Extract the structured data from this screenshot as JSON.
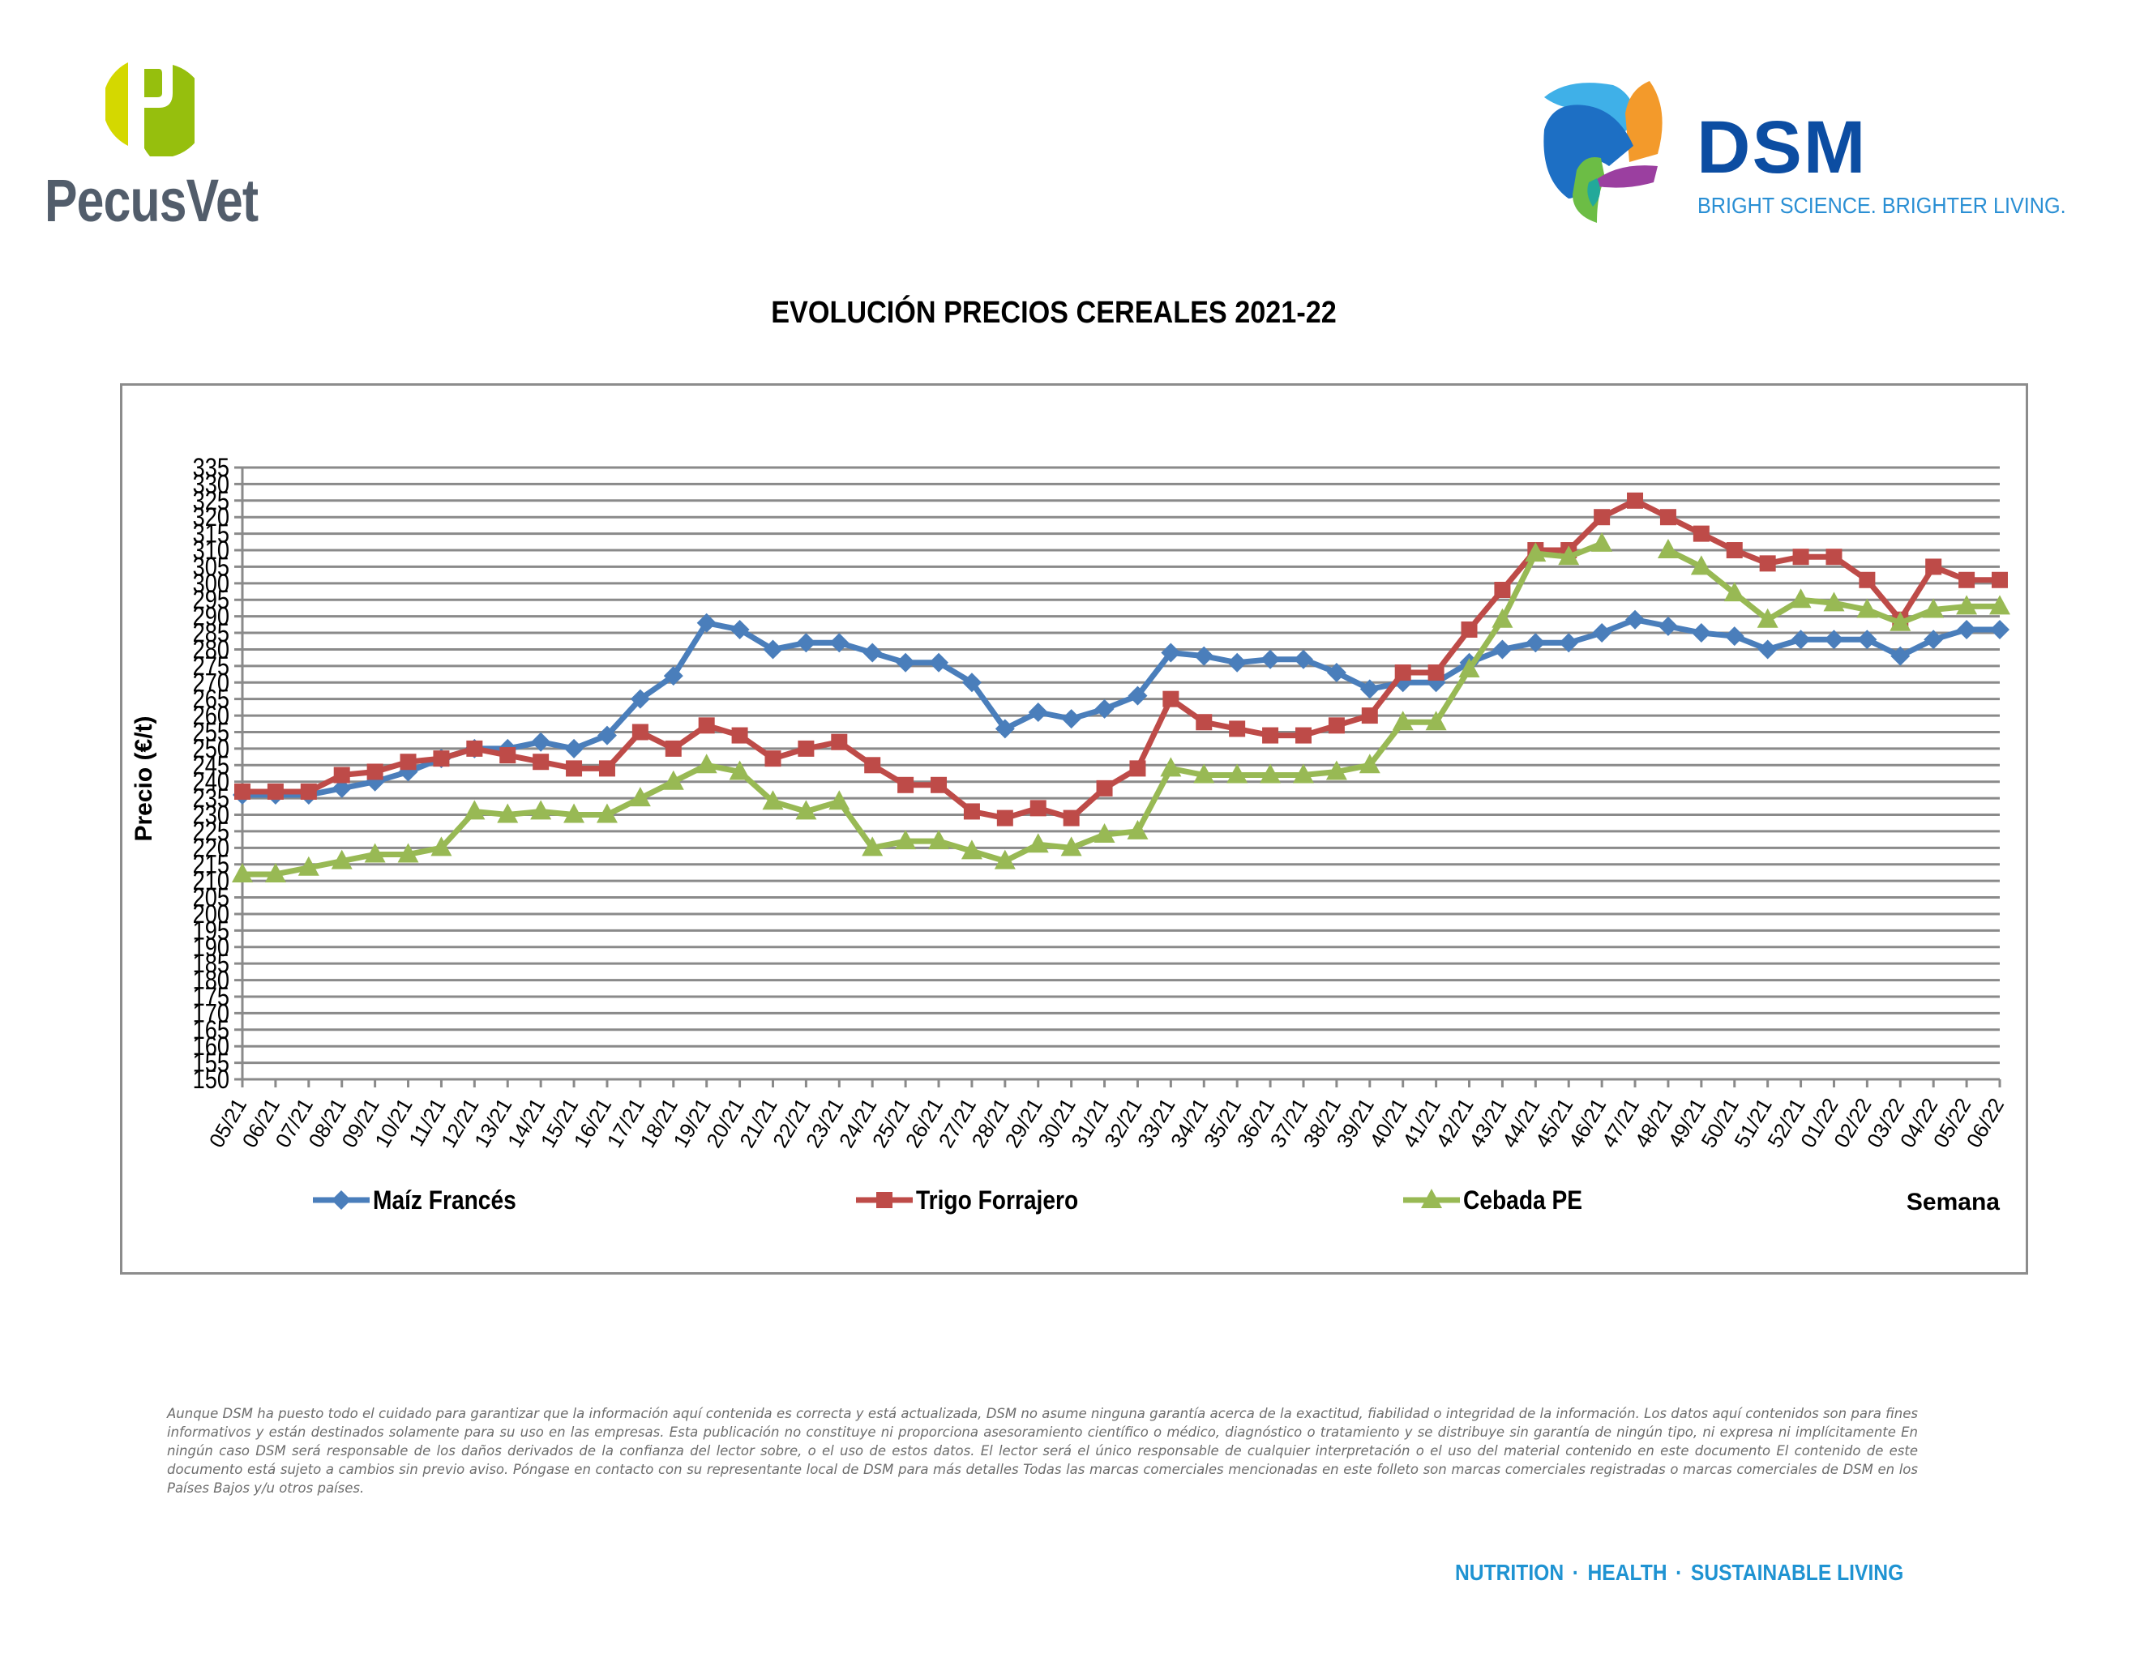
{
  "header": {
    "left_logo": {
      "name": "PecusVet",
      "icon": "pecusvet-p-icon",
      "colors": [
        "#d4d800",
        "#96bf0d"
      ]
    },
    "right_logo": {
      "name": "DSM",
      "tagline": "BRIGHT SCIENCE. BRIGHTER LIVING.",
      "icon": "dsm-swirl-icon",
      "color": "#0c4da2"
    }
  },
  "chart_data": {
    "type": "line",
    "title": "EVOLUCIÓN PRECIOS CEREALES 2021-22",
    "xlabel": "Semana",
    "ylabel": "Precio (€/t)",
    "ylim": [
      150,
      335
    ],
    "ytick_step": 5,
    "grid": true,
    "legend_position": "bottom",
    "categories": [
      "05/21",
      "06/21",
      "07/21",
      "08/21",
      "09/21",
      "10/21",
      "11/21",
      "12/21",
      "13/21",
      "14/21",
      "15/21",
      "16/21",
      "17/21",
      "18/21",
      "19/21",
      "20/21",
      "21/21",
      "22/21",
      "23/21",
      "24/21",
      "25/21",
      "26/21",
      "27/21",
      "28/21",
      "29/21",
      "30/21",
      "31/21",
      "32/21",
      "33/21",
      "34/21",
      "35/21",
      "36/21",
      "37/21",
      "38/21",
      "39/21",
      "40/21",
      "41/21",
      "42/21",
      "43/21",
      "44/21",
      "45/21",
      "46/21",
      "47/21",
      "48/21",
      "49/21",
      "50/21",
      "51/21",
      "52/21",
      "01/22",
      "02/22",
      "03/22",
      "04/22",
      "05/22",
      "06/22"
    ],
    "series": [
      {
        "name": "Maíz Francés",
        "color": "#4a7ebb",
        "marker": "diamond",
        "values": [
          236,
          236,
          236,
          238,
          240,
          243,
          247,
          250,
          250,
          252,
          250,
          254,
          265,
          272,
          288,
          286,
          280,
          282,
          282,
          279,
          276,
          276,
          270,
          256,
          261,
          259,
          262,
          266,
          279,
          278,
          276,
          277,
          277,
          273,
          268,
          270,
          270,
          276,
          280,
          282,
          282,
          285,
          289,
          287,
          285,
          284,
          280,
          283,
          283,
          283,
          278,
          283,
          286,
          286
        ]
      },
      {
        "name": "Trigo Forrajero",
        "color": "#be4b48",
        "marker": "square",
        "values": [
          237,
          237,
          237,
          242,
          243,
          246,
          247,
          250,
          248,
          246,
          244,
          244,
          255,
          250,
          257,
          254,
          247,
          250,
          252,
          245,
          239,
          239,
          231,
          229,
          232,
          229,
          238,
          244,
          265,
          258,
          256,
          254,
          254,
          257,
          260,
          273,
          273,
          286,
          298,
          310,
          310,
          320,
          325,
          320,
          315,
          310,
          306,
          308,
          308,
          301,
          289,
          305,
          301,
          301
        ]
      },
      {
        "name": "Cebada PE",
        "color": "#98b954",
        "marker": "triangle",
        "values": [
          212,
          212,
          214,
          216,
          218,
          218,
          220,
          231,
          230,
          231,
          230,
          230,
          235,
          240,
          245,
          243,
          234,
          231,
          234,
          220,
          222,
          222,
          219,
          216,
          221,
          220,
          224,
          225,
          244,
          242,
          242,
          242,
          242,
          243,
          245,
          258,
          258,
          274,
          289,
          309,
          308,
          312,
          null,
          310,
          305,
          297,
          289,
          295,
          294,
          292,
          288,
          292,
          293,
          293
        ]
      }
    ]
  },
  "disclaimer": "Aunque DSM ha puesto todo el cuidado para garantizar que la información aquí contenida es correcta y está actualizada, DSM no asume ninguna garantía acerca de la exactitud, fiabilidad o integridad de la información. Los datos aquí contenidos son para fines informativos y están destinados solamente para su uso en las empresas. Esta publicación no constituye ni proporciona asesoramiento científico o médico, diagnóstico o tratamiento y se distribuye sin garantía de ningún tipo, ni expresa ni implícitamente En ningún caso DSM será responsable de los daños derivados de la confianza del lector sobre, o el uso de estos datos. El lector será el único responsable de cualquier interpretación o el uso del material contenido en este documento El contenido de este documento está sujeto a cambios sin previo aviso. Póngase en contacto con su representante local de DSM para más detalles Todas las marcas comerciales mencionadas en este folleto son marcas comerciales registradas o marcas comerciales de DSM en los Países Bajos y/u otros países.",
  "footer": {
    "items": [
      "NUTRITION",
      "HEALTH",
      "SUSTAINABLE LIVING"
    ],
    "color": "#1f93d2"
  }
}
